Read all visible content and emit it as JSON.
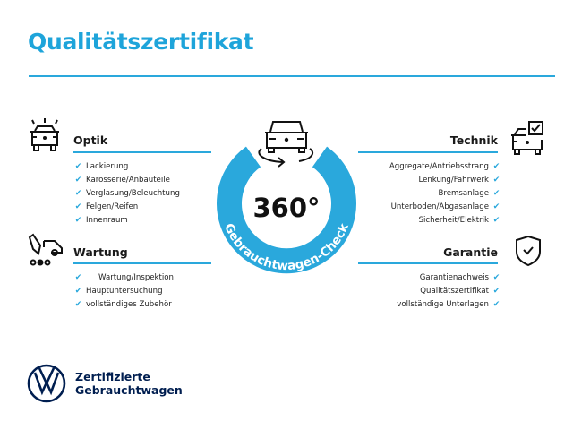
{
  "title": "Qualitätszertifikat",
  "colors": {
    "accent": "#2aa8dc",
    "brand_navy": "#001e50",
    "ring": "#2aa8dc"
  },
  "center": {
    "big": "360°",
    "ring_text": "Gebrauchtwagen-Check",
    "icon": "car-rotate-icon"
  },
  "sections": {
    "optik": {
      "heading": "Optik",
      "icon": "car-lights-icon",
      "items": [
        "Lackierung",
        "Karosserie/Anbauteile",
        "Verglasung/Beleuchtung",
        "Felgen/Reifen",
        "Innenraum"
      ]
    },
    "wartung": {
      "heading": "Wartung",
      "icon": "service-truck-icon",
      "items": [
        "Wartung/Inspektion",
        "Hauptuntersuchung",
        "vollständiges Zubehör"
      ]
    },
    "technik": {
      "heading": "Technik",
      "icon": "car-checkbox-icon",
      "items": [
        "Aggregate/Antriebsstrang",
        "Lenkung/Fahrwerk",
        "Bremsanlage",
        "Unterboden/Abgasanlage",
        "Sicherheit/Elektrik"
      ]
    },
    "garantie": {
      "heading": "Garantie",
      "icon": "shield-check-icon",
      "items": [
        "Garantienachweis",
        "Qualitätszertifikat",
        "vollständige Unterlagen"
      ]
    }
  },
  "footer": {
    "line1": "Zertifizierte",
    "line2": "Gebrauchtwagen",
    "logo": "vw-logo"
  }
}
